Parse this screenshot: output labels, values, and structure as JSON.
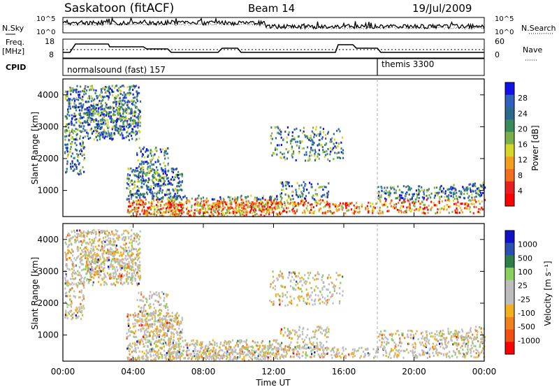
{
  "header": {
    "title": "Saskatoon (fitACF)",
    "beam": "Beam 14",
    "date": "19/Jul/2009"
  },
  "noise_panel": {
    "left_label": "N.Sky",
    "left_ticks": [
      "10^5",
      "10^0"
    ],
    "right_label": "N.Search",
    "right_ticks": [
      "10^5",
      "10^0"
    ]
  },
  "freq_panel": {
    "left_label_line1": "Freq.",
    "left_label_line2": "[MHz]",
    "left_ticks": [
      "18",
      "8"
    ],
    "right_label": "Nave",
    "right_ticks": [
      "60",
      "0"
    ]
  },
  "cpid_panel": {
    "label": "CPID",
    "programs": [
      "normalsound (fast) 157",
      "themis 3300"
    ]
  },
  "chart_data": [
    {
      "type": "heatmap",
      "name": "power",
      "ylabel": "Slant Range [km]",
      "yticks": [
        "4000",
        "3000",
        "2000",
        "1000"
      ],
      "ylim": [
        180,
        4500
      ],
      "colorbar_label": "Power [dB]",
      "colorbar_ticks": [
        "28",
        "24",
        "20",
        "16",
        "12",
        "8",
        "4"
      ],
      "colorbar_colors": [
        "#1010e8",
        "#3060c0",
        "#2c6a8c",
        "#3a8a5a",
        "#7ab04a",
        "#d6d62a",
        "#f0a020",
        "#f07020",
        "#e82020",
        "#ff0000"
      ]
    },
    {
      "type": "heatmap",
      "name": "velocity",
      "ylabel": "Slant Range [km]",
      "yticks": [
        "4000",
        "3000",
        "2000",
        "1000"
      ],
      "ylim": [
        180,
        4500
      ],
      "xlabel": "Time UT",
      "xticks": [
        "00:00",
        "04:00",
        "08:00",
        "12:00",
        "16:00",
        "20:00",
        "00:00"
      ],
      "colorbar_label": "Velocity [m s⁻¹]",
      "colorbar_ticks": [
        "1000",
        "500",
        "100",
        "25",
        "-25",
        "-100",
        "-500",
        "-1000"
      ],
      "colorbar_colors": [
        "#1010c8",
        "#2a50b0",
        "#2e7e4a",
        "#8ad060",
        "#bdbdbd",
        "#bdbdbd",
        "#f0b020",
        "#f08020",
        "#f05010",
        "#ff0000"
      ]
    }
  ]
}
